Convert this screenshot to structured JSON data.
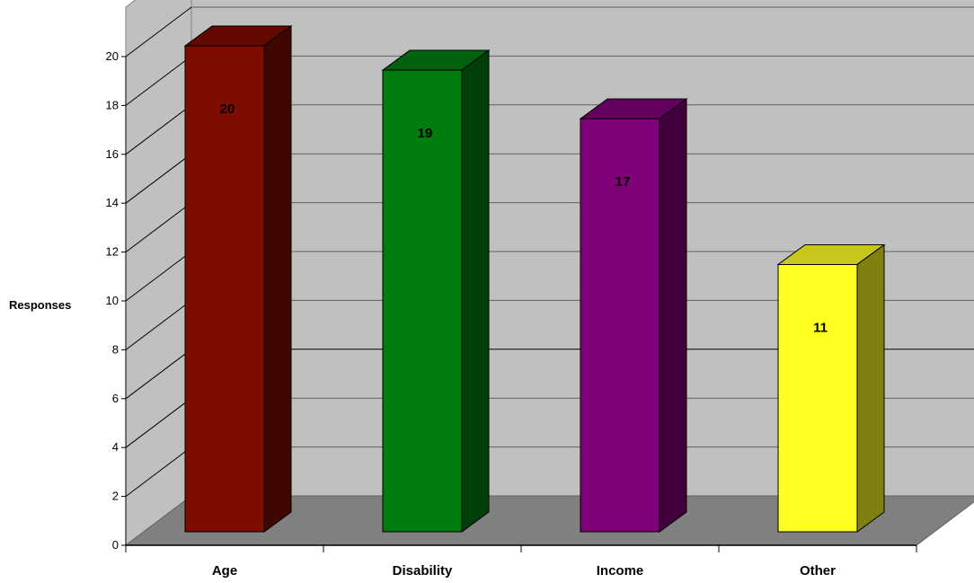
{
  "chart_data": {
    "type": "bar",
    "style": "3d",
    "categories": [
      "Age",
      "Disability",
      "Income",
      "Other"
    ],
    "values": [
      20,
      19,
      17,
      11
    ],
    "data_labels": [
      "20",
      "19",
      "17",
      "11"
    ],
    "ylabel": "Responses",
    "ylim": [
      0,
      20
    ],
    "yticks": [
      "0",
      "2",
      "4",
      "6",
      "8",
      "10",
      "12",
      "14",
      "16",
      "18",
      "20"
    ],
    "grid": true,
    "legend": "none",
    "colors": {
      "bars": [
        "#7f0c00",
        "#007d0f",
        "#7f0078",
        "#ffff22"
      ],
      "wall": "#c0c0c0",
      "floor": "#808080"
    }
  }
}
